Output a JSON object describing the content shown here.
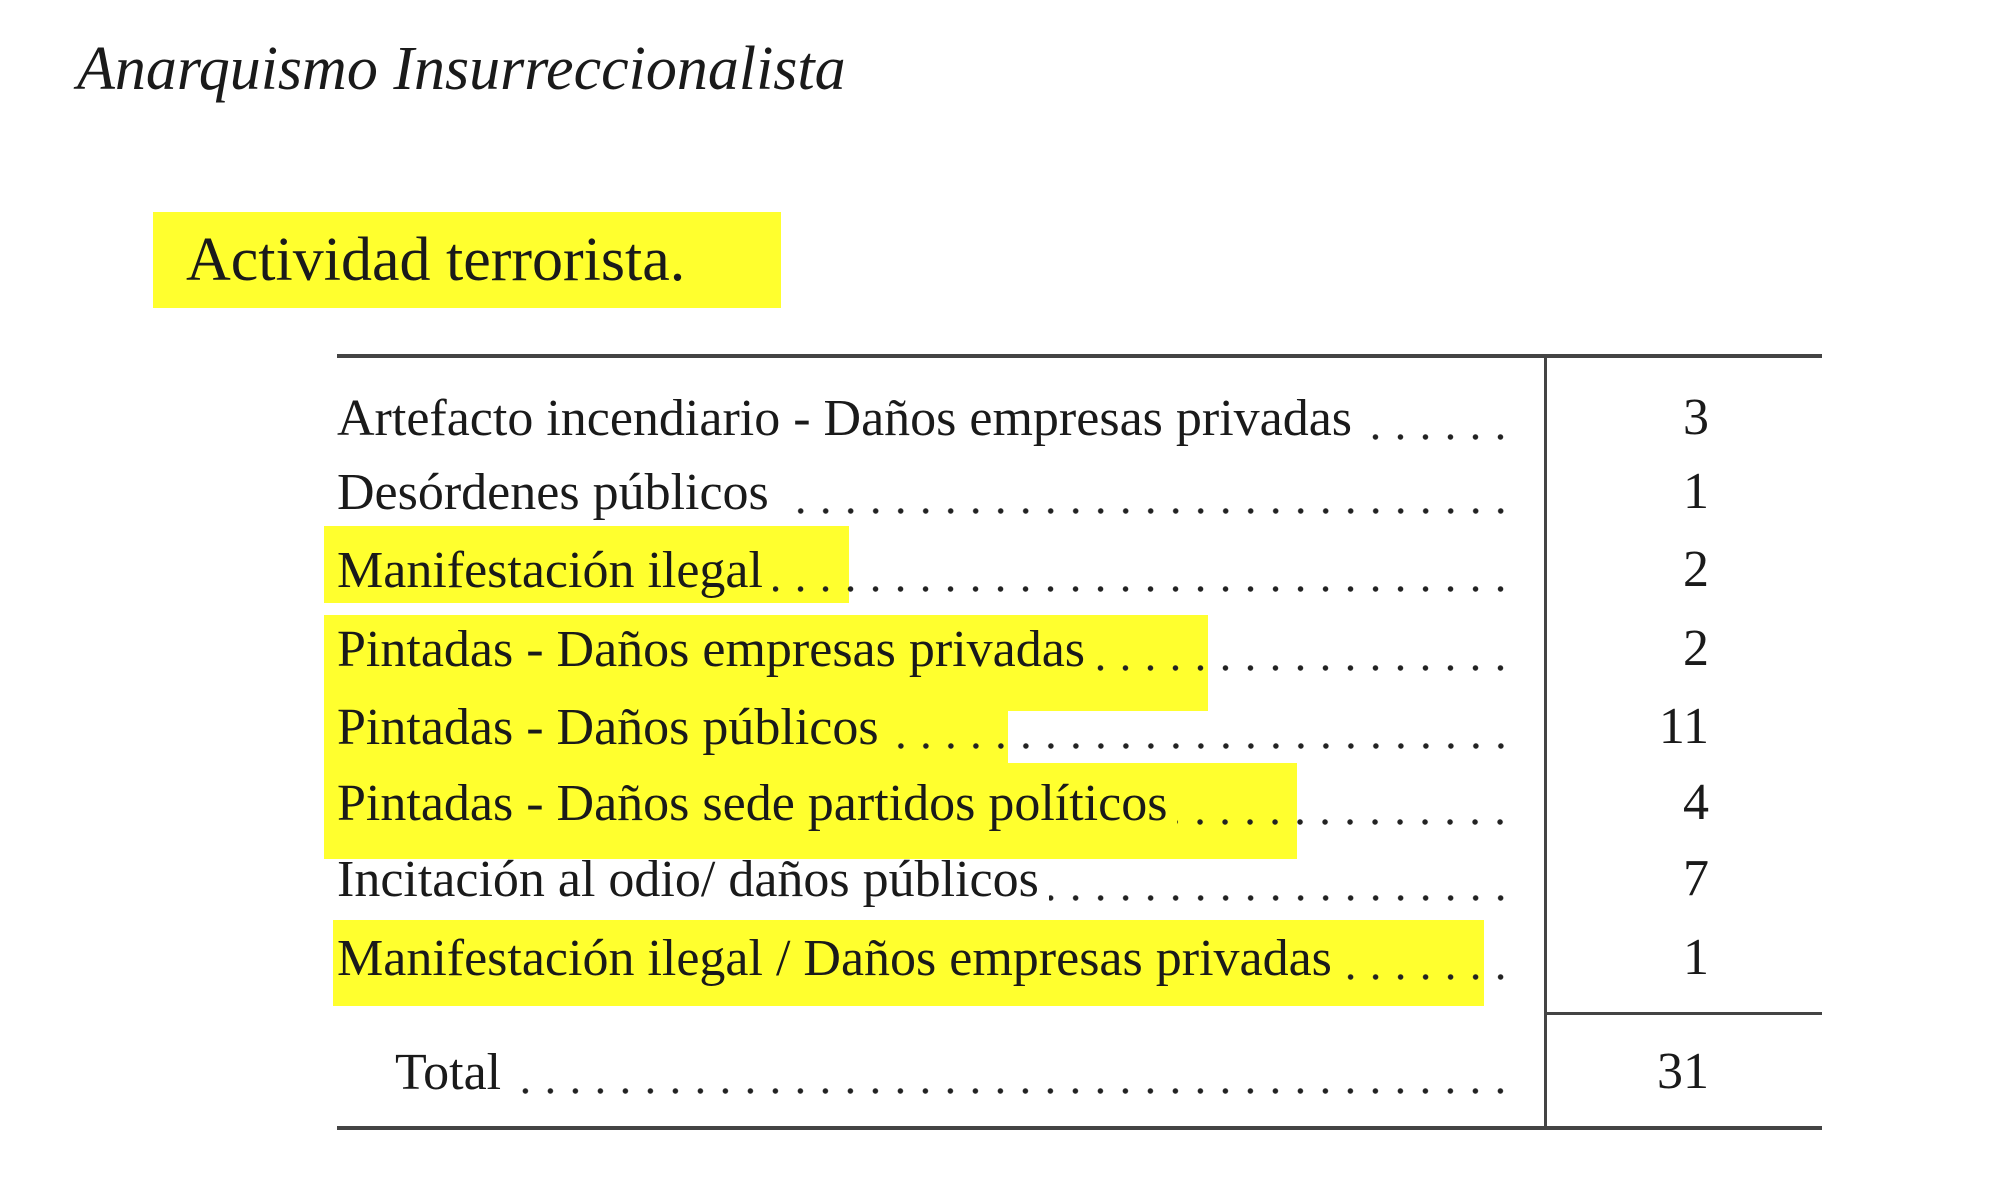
{
  "header": {
    "title": "Anarquismo Insurreccionalista"
  },
  "section": {
    "title": "Actividad terrorista."
  },
  "highlight_color": "#ffff2e",
  "table": {
    "rows": [
      {
        "label": "Artefacto incendiario - Daños empresas privadas",
        "value": "3",
        "highlighted": false
      },
      {
        "label": "Desórdenes públicos",
        "value": "1",
        "highlighted": false
      },
      {
        "label": "Manifestación ilegal",
        "value": "2",
        "highlighted": true
      },
      {
        "label": "Pintadas - Daños empresas privadas",
        "value": "2",
        "highlighted": true
      },
      {
        "label": "Pintadas - Daños públicos",
        "value": "11",
        "highlighted": true
      },
      {
        "label": "Pintadas - Daños sede partidos políticos",
        "value": "4",
        "highlighted": true
      },
      {
        "label": "Incitación al odio/ daños públicos",
        "value": "7",
        "highlighted": false
      },
      {
        "label": "Manifestación ilegal / Daños empresas privadas",
        "value": "1",
        "highlighted": true
      }
    ],
    "total": {
      "label": "Total",
      "value": "31"
    }
  }
}
